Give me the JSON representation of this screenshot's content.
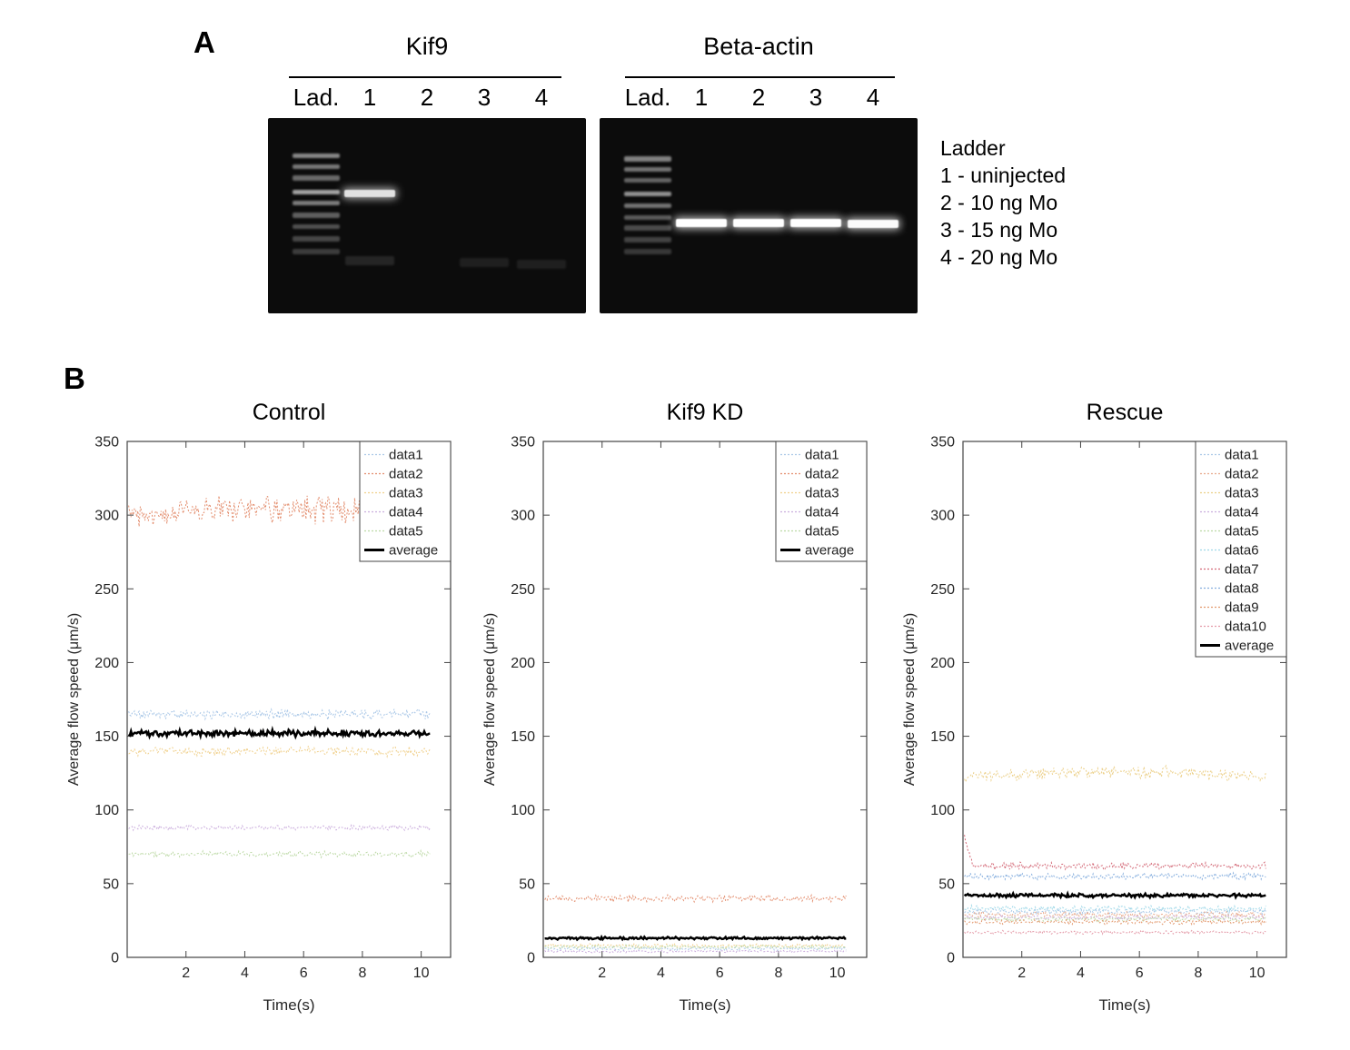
{
  "figure": {
    "panelA": {
      "label": "A",
      "lane_fractions": [
        0.15,
        0.32,
        0.5,
        0.68,
        0.86
      ],
      "gels": [
        {
          "title": "Kif9",
          "lanes": [
            "Lad.",
            "1",
            "2",
            "3",
            "4"
          ],
          "ladder_bands": [
            [
              0.195,
              0.5
            ],
            [
              0.251,
              0.44
            ],
            [
              0.307,
              0.38
            ],
            [
              0.381,
              0.62
            ],
            [
              0.437,
              0.46
            ],
            [
              0.498,
              0.34
            ],
            [
              0.558,
              0.28
            ],
            [
              0.619,
              0.24
            ],
            [
              0.684,
              0.2
            ]
          ],
          "sample_bands": [
            {
              "lane": 1,
              "y": 0.385,
              "opacity": 0.88,
              "glow": true
            }
          ],
          "smears": [
            {
              "lane": 1,
              "y": 0.73,
              "opacity": 0.1
            },
            {
              "lane": 3,
              "y": 0.74,
              "opacity": 0.08
            },
            {
              "lane": 4,
              "y": 0.75,
              "opacity": 0.08
            }
          ]
        },
        {
          "title": "Beta-actin",
          "lanes": [
            "Lad.",
            "1",
            "2",
            "3",
            "4"
          ],
          "ladder_bands": [
            [
              0.21,
              0.48
            ],
            [
              0.265,
              0.42
            ],
            [
              0.32,
              0.36
            ],
            [
              0.39,
              0.55
            ],
            [
              0.45,
              0.42
            ],
            [
              0.51,
              0.32
            ],
            [
              0.565,
              0.26
            ],
            [
              0.625,
              0.22
            ],
            [
              0.685,
              0.18
            ]
          ],
          "sample_bands": [
            {
              "lane": 1,
              "y": 0.535,
              "opacity": 1,
              "glow": true
            },
            {
              "lane": 2,
              "y": 0.535,
              "opacity": 1,
              "glow": true
            },
            {
              "lane": 3,
              "y": 0.535,
              "opacity": 1,
              "glow": true
            },
            {
              "lane": 4,
              "y": 0.54,
              "opacity": 0.98,
              "glow": true
            }
          ],
          "smears": []
        }
      ],
      "legend": [
        "Ladder",
        "1 - uninjected",
        "2 - 10 ng Mo",
        "3 - 15 ng Mo",
        "4 - 20 ng Mo"
      ]
    },
    "panelB": {
      "label": "B"
    }
  },
  "chart_data": [
    {
      "type": "line",
      "title": "Control",
      "xlabel": "Time(s)",
      "ylabel": "Average flow speed (μm/s)",
      "xlim": [
        0,
        11
      ],
      "ylim": [
        0,
        350
      ],
      "xticks": [
        2,
        4,
        6,
        8,
        10
      ],
      "yticks": [
        0,
        50,
        100,
        150,
        200,
        250,
        300,
        350
      ],
      "legend_position": "top-right",
      "grid": false,
      "series": [
        {
          "name": "data1",
          "color": "#a9c7e7",
          "mean": 165,
          "amp": 4
        },
        {
          "name": "data2",
          "color": "#e38d6d",
          "mean": 300,
          "amp": 11,
          "wave": [
            4,
            0.5
          ]
        },
        {
          "name": "data3",
          "color": "#f0d08c",
          "mean": 140,
          "amp": 4
        },
        {
          "name": "data4",
          "color": "#cbaedd",
          "mean": 88,
          "amp": 2
        },
        {
          "name": "data5",
          "color": "#bcd9a5",
          "mean": 70,
          "amp": 2.5
        },
        {
          "name": "average",
          "color": "#000000",
          "mean": 152,
          "amp": 2.5,
          "solid": true,
          "width": 2.5
        }
      ]
    },
    {
      "type": "line",
      "title": "Kif9 KD",
      "xlabel": "Time(s)",
      "ylabel": "Average flow speed (μm/s)",
      "xlim": [
        0,
        11
      ],
      "ylim": [
        0,
        350
      ],
      "xticks": [
        2,
        4,
        6,
        8,
        10
      ],
      "yticks": [
        0,
        50,
        100,
        150,
        200,
        250,
        300,
        350
      ],
      "legend_position": "top-right",
      "grid": false,
      "series": [
        {
          "name": "data1",
          "color": "#a9c7e7",
          "mean": 6,
          "amp": 1.5
        },
        {
          "name": "data2",
          "color": "#e38d6d",
          "mean": 40,
          "amp": 3
        },
        {
          "name": "data3",
          "color": "#f0d08c",
          "mean": 8,
          "amp": 1.5
        },
        {
          "name": "data4",
          "color": "#cbaedd",
          "mean": 4,
          "amp": 1
        },
        {
          "name": "data5",
          "color": "#bcd9a5",
          "mean": 7,
          "amp": 1.5
        },
        {
          "name": "average",
          "color": "#000000",
          "mean": 13,
          "amp": 1,
          "solid": true,
          "width": 2.5
        }
      ]
    },
    {
      "type": "line",
      "title": "Rescue",
      "xlabel": "Time(s)",
      "ylabel": "Average flow speed (μm/s)",
      "xlim": [
        0,
        11
      ],
      "ylim": [
        0,
        350
      ],
      "xticks": [
        2,
        4,
        6,
        8,
        10
      ],
      "yticks": [
        0,
        50,
        100,
        150,
        200,
        250,
        300,
        350
      ],
      "legend_position": "top-right",
      "grid": false,
      "series": [
        {
          "name": "data1",
          "color": "#a9c7e7",
          "mean": 31,
          "amp": 2.5
        },
        {
          "name": "data2",
          "color": "#e8a98c",
          "mean": 29,
          "amp": 2.5
        },
        {
          "name": "data3",
          "color": "#ecd089",
          "mean": 122,
          "amp": 5,
          "wave": [
            4,
            0.5
          ]
        },
        {
          "name": "data4",
          "color": "#cbaedd",
          "mean": 27,
          "amp": 2
        },
        {
          "name": "data5",
          "color": "#bcd9a5",
          "mean": 26,
          "amp": 2
        },
        {
          "name": "data6",
          "color": "#9ed8e8",
          "mean": 33,
          "amp": 2.5
        },
        {
          "name": "data7",
          "color": "#d46a78",
          "mean": 62,
          "amp": 3,
          "spike": 85
        },
        {
          "name": "data8",
          "color": "#85aede",
          "mean": 55,
          "amp": 2.5
        },
        {
          "name": "data9",
          "color": "#e3986d",
          "mean": 24,
          "amp": 2
        },
        {
          "name": "data10",
          "color": "#e49aa8",
          "mean": 17,
          "amp": 1.5
        },
        {
          "name": "average",
          "color": "#000000",
          "mean": 42,
          "amp": 1.5,
          "solid": true,
          "width": 2.5
        }
      ]
    }
  ]
}
